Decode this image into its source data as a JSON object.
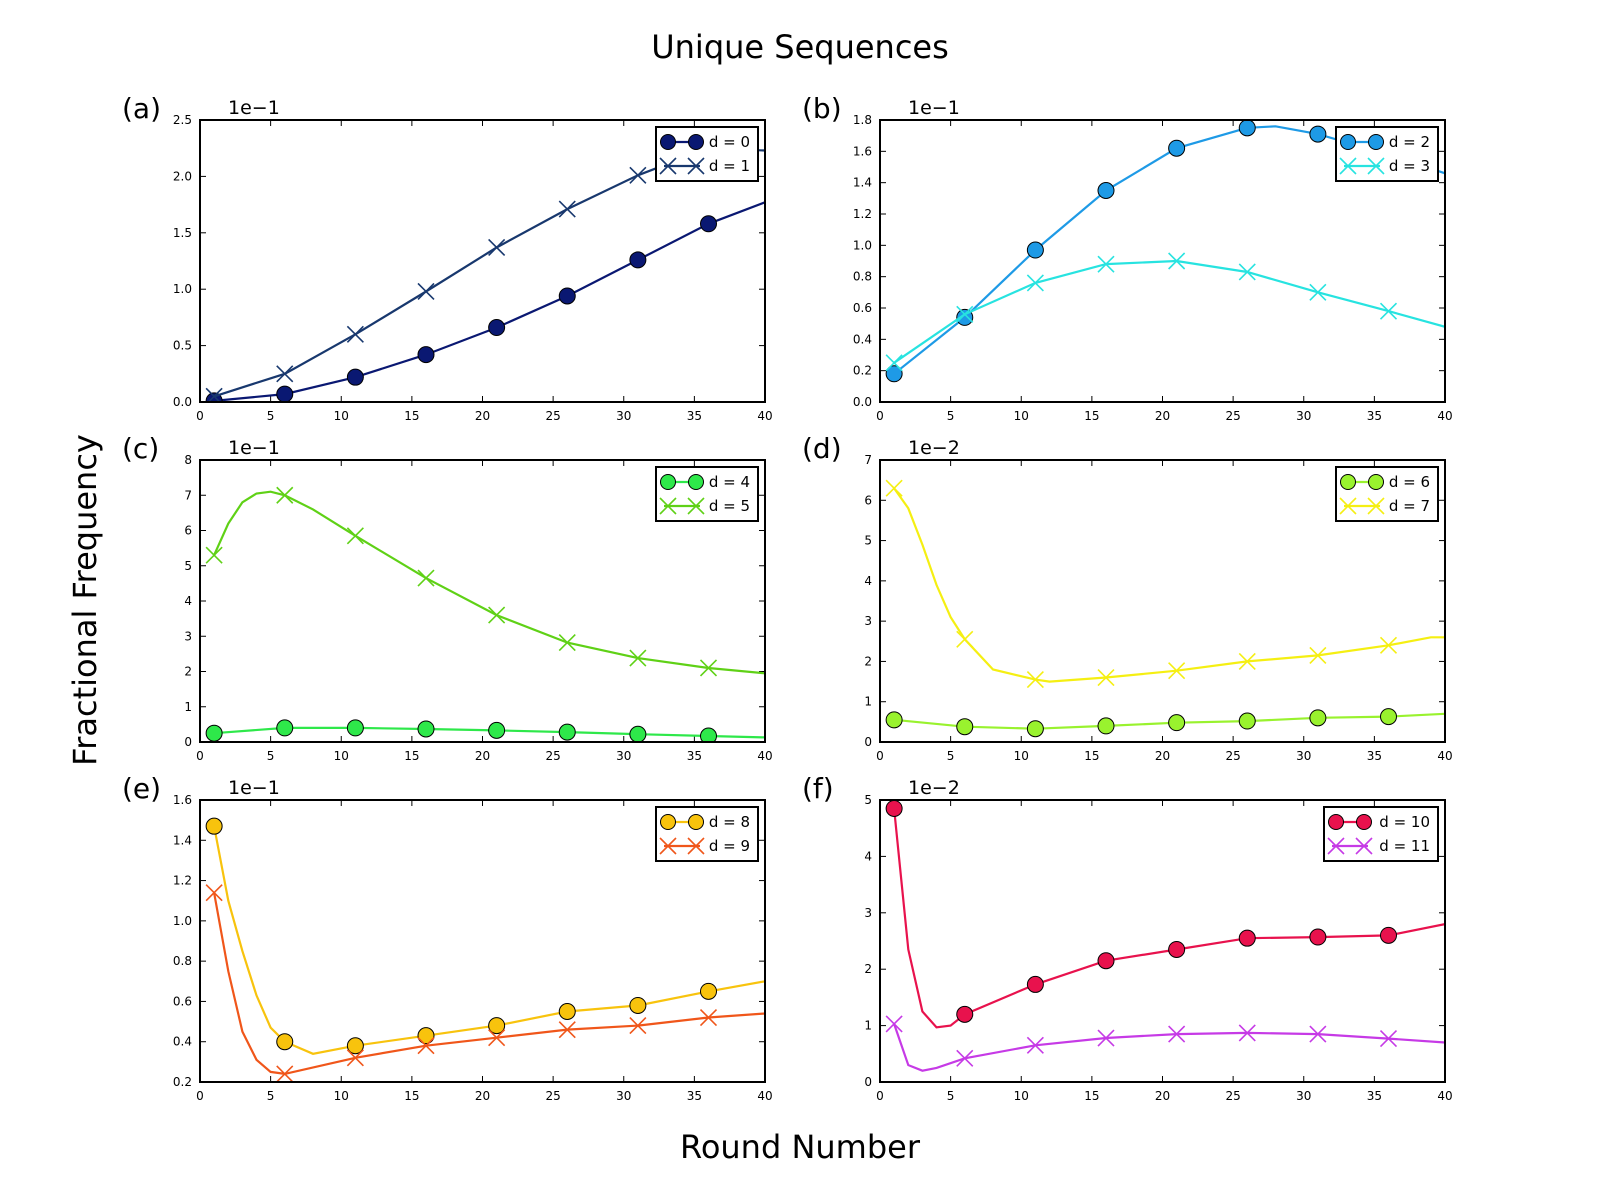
{
  "figure": {
    "title": "Unique Sequences",
    "xlabel": "Round Number",
    "ylabel": "Fractional Frequency"
  },
  "chart_data": [
    {
      "type": "line",
      "panel_label": "(a)",
      "multiplier": "1e−1",
      "xlim": [
        0,
        40
      ],
      "ylim": [
        0,
        2.5
      ],
      "xticks": [
        0,
        5,
        10,
        15,
        20,
        25,
        30,
        35,
        40
      ],
      "yticks": [
        0.0,
        0.5,
        1.0,
        1.5,
        2.0,
        2.5
      ],
      "ytick_labels": [
        "0.0",
        "0.5",
        "1.0",
        "1.5",
        "2.0",
        "2.5"
      ],
      "legend_position": "upper right",
      "series": [
        {
          "name": "d = 0",
          "marker": "circle",
          "color": "#0a1872",
          "x": [
            1,
            6,
            11,
            16,
            21,
            26,
            31,
            36,
            40
          ],
          "y": [
            0.01,
            0.07,
            0.22,
            0.42,
            0.66,
            0.94,
            1.26,
            1.58,
            1.77
          ]
        },
        {
          "name": "d = 1",
          "marker": "x",
          "color": "#18386e",
          "x": [
            1,
            6,
            11,
            16,
            21,
            26,
            31,
            36,
            40
          ],
          "y": [
            0.05,
            0.25,
            0.6,
            0.98,
            1.37,
            1.71,
            2.01,
            2.25,
            2.23
          ]
        }
      ]
    },
    {
      "type": "line",
      "panel_label": "(b)",
      "multiplier": "1e−1",
      "xlim": [
        0,
        40
      ],
      "ylim": [
        0,
        1.8
      ],
      "xticks": [
        0,
        5,
        10,
        15,
        20,
        25,
        30,
        35,
        40
      ],
      "yticks": [
        0.0,
        0.2,
        0.4,
        0.6,
        0.8,
        1.0,
        1.2,
        1.4,
        1.6,
        1.8
      ],
      "ytick_labels": [
        "0.0",
        "0.2",
        "0.4",
        "0.6",
        "0.8",
        "1.0",
        "1.2",
        "1.4",
        "1.6",
        "1.8"
      ],
      "legend_position": "upper right",
      "series": [
        {
          "name": "d = 2",
          "marker": "circle",
          "color": "#1e9ae6",
          "x": [
            1,
            6,
            11,
            16,
            21,
            26,
            28,
            31,
            36,
            40
          ],
          "y": [
            0.18,
            0.54,
            0.97,
            1.35,
            1.62,
            1.75,
            1.76,
            1.71,
            1.58,
            1.46
          ]
        },
        {
          "name": "d = 3",
          "marker": "x",
          "color": "#27e3e0",
          "x": [
            1,
            6,
            11,
            16,
            21,
            26,
            31,
            36,
            40
          ],
          "y": [
            0.25,
            0.56,
            0.76,
            0.88,
            0.9,
            0.83,
            0.7,
            0.58,
            0.48
          ]
        }
      ]
    },
    {
      "type": "line",
      "panel_label": "(c)",
      "multiplier": "1e−1",
      "xlim": [
        0,
        40
      ],
      "ylim": [
        0,
        8
      ],
      "xticks": [
        0,
        5,
        10,
        15,
        20,
        25,
        30,
        35,
        40
      ],
      "yticks": [
        0,
        1,
        2,
        3,
        4,
        5,
        6,
        7,
        8
      ],
      "ytick_labels": [
        "0",
        "1",
        "2",
        "3",
        "4",
        "5",
        "6",
        "7",
        "8"
      ],
      "legend_position": "upper right",
      "series": [
        {
          "name": "d = 4",
          "marker": "circle",
          "color": "#2ee84a",
          "x": [
            1,
            6,
            11,
            16,
            21,
            26,
            31,
            36,
            40
          ],
          "y": [
            0.25,
            0.4,
            0.4,
            0.37,
            0.33,
            0.28,
            0.22,
            0.17,
            0.13
          ]
        },
        {
          "name": "d = 5",
          "marker": "x",
          "color": "#5fd116",
          "x": [
            1,
            2,
            3,
            4,
            5,
            6,
            8,
            11,
            16,
            21,
            26,
            31,
            36,
            40
          ],
          "y": [
            5.3,
            6.2,
            6.8,
            7.05,
            7.1,
            7.0,
            6.6,
            5.85,
            4.65,
            3.6,
            2.82,
            2.38,
            2.1,
            1.95
          ]
        }
      ]
    },
    {
      "type": "line",
      "panel_label": "(d)",
      "multiplier": "1e−2",
      "xlim": [
        0,
        40
      ],
      "ylim": [
        0,
        7
      ],
      "xticks": [
        0,
        5,
        10,
        15,
        20,
        25,
        30,
        35,
        40
      ],
      "yticks": [
        0,
        1,
        2,
        3,
        4,
        5,
        6,
        7
      ],
      "ytick_labels": [
        "0",
        "1",
        "2",
        "3",
        "4",
        "5",
        "6",
        "7"
      ],
      "legend_position": "upper right",
      "series": [
        {
          "name": "d = 6",
          "marker": "circle",
          "color": "#99f22e",
          "x": [
            1,
            6,
            11,
            16,
            21,
            26,
            31,
            36,
            40
          ],
          "y": [
            0.55,
            0.38,
            0.33,
            0.4,
            0.48,
            0.52,
            0.6,
            0.63,
            0.7
          ]
        },
        {
          "name": "d = 7",
          "marker": "x",
          "color": "#f5ef12",
          "x": [
            1,
            2,
            3,
            4,
            5,
            6,
            8,
            11,
            12,
            16,
            21,
            26,
            31,
            36,
            39,
            40
          ],
          "y": [
            6.3,
            5.8,
            4.9,
            3.9,
            3.1,
            2.55,
            1.8,
            1.55,
            1.5,
            1.6,
            1.77,
            2.0,
            2.15,
            2.4,
            2.6,
            2.6
          ]
        }
      ]
    },
    {
      "type": "line",
      "panel_label": "(e)",
      "multiplier": "1e−1",
      "xlim": [
        0,
        40
      ],
      "ylim": [
        0.2,
        1.6
      ],
      "xticks": [
        0,
        5,
        10,
        15,
        20,
        25,
        30,
        35,
        40
      ],
      "yticks": [
        0.2,
        0.4,
        0.6,
        0.8,
        1.0,
        1.2,
        1.4,
        1.6
      ],
      "ytick_labels": [
        "0.2",
        "0.4",
        "0.6",
        "0.8",
        "1.0",
        "1.2",
        "1.4",
        "1.6"
      ],
      "legend_position": "upper right",
      "series": [
        {
          "name": "d = 8",
          "marker": "circle",
          "color": "#f8c30d",
          "x": [
            1,
            2,
            3,
            4,
            5,
            6,
            8,
            11,
            16,
            21,
            26,
            31,
            36,
            40
          ],
          "y": [
            1.47,
            1.1,
            0.85,
            0.63,
            0.47,
            0.4,
            0.34,
            0.38,
            0.43,
            0.48,
            0.55,
            0.58,
            0.65,
            0.7
          ]
        },
        {
          "name": "d = 9",
          "marker": "x",
          "color": "#f0561a",
          "x": [
            1,
            2,
            3,
            4,
            5,
            6,
            11,
            16,
            21,
            26,
            31,
            36,
            40
          ],
          "y": [
            1.14,
            0.75,
            0.45,
            0.31,
            0.25,
            0.24,
            0.32,
            0.38,
            0.42,
            0.46,
            0.48,
            0.52,
            0.54
          ]
        }
      ]
    },
    {
      "type": "line",
      "panel_label": "(f)",
      "multiplier": "1e−2",
      "xlim": [
        0,
        40
      ],
      "ylim": [
        0,
        5
      ],
      "xticks": [
        0,
        5,
        10,
        15,
        20,
        25,
        30,
        35,
        40
      ],
      "yticks": [
        0,
        1,
        2,
        3,
        4,
        5
      ],
      "ytick_labels": [
        "0",
        "1",
        "2",
        "3",
        "4",
        "5"
      ],
      "legend_position": "upper right",
      "series": [
        {
          "name": "d = 10",
          "marker": "circle",
          "color": "#e8124d",
          "x": [
            1,
            2,
            3,
            4,
            5,
            6,
            11,
            16,
            21,
            26,
            31,
            36,
            40
          ],
          "y": [
            4.85,
            2.35,
            1.25,
            0.97,
            1.0,
            1.2,
            1.73,
            2.15,
            2.35,
            2.55,
            2.57,
            2.6,
            2.8
          ]
        },
        {
          "name": "d = 11",
          "marker": "x",
          "color": "#c63ae6",
          "x": [
            1,
            2,
            3,
            4,
            6,
            11,
            16,
            21,
            26,
            31,
            36,
            40
          ],
          "y": [
            1.03,
            0.3,
            0.2,
            0.25,
            0.42,
            0.65,
            0.78,
            0.85,
            0.87,
            0.85,
            0.77,
            0.7
          ]
        }
      ]
    }
  ]
}
